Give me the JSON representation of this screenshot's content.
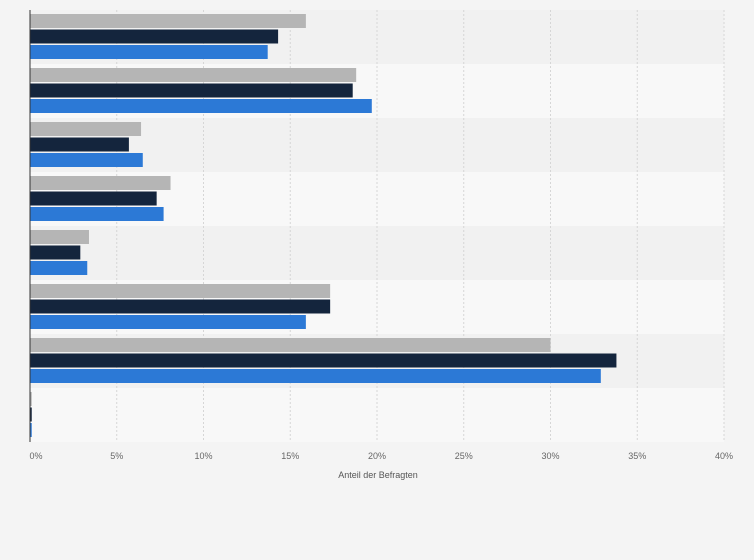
{
  "chart_data": {
    "type": "bar",
    "orientation": "horizontal",
    "xlabel": "Anteil der Befragten",
    "xlim": [
      0,
      40
    ],
    "x_ticks": [
      0,
      5,
      10,
      15,
      20,
      25,
      30,
      35,
      40
    ],
    "x_tick_labels": [
      "0%",
      "5%",
      "10%",
      "15%",
      "20%",
      "25%",
      "30%",
      "35%",
      "40%"
    ],
    "grid": true,
    "legend": "none",
    "categories": [
      "",
      "",
      "",
      "",
      "",
      "",
      "",
      ""
    ],
    "series": [
      {
        "color": "#b5b5b5",
        "values": [
          15.9,
          18.8,
          6.4,
          8.1,
          3.4,
          17.3,
          30.0,
          0.1
        ]
      },
      {
        "color": "#14253d",
        "values": [
          14.3,
          18.6,
          5.7,
          7.3,
          2.9,
          17.3,
          33.8,
          0.1
        ]
      },
      {
        "color": "#2c79d6",
        "values": [
          13.7,
          19.7,
          6.5,
          7.7,
          3.3,
          15.9,
          32.9,
          0.1
        ]
      }
    ]
  }
}
